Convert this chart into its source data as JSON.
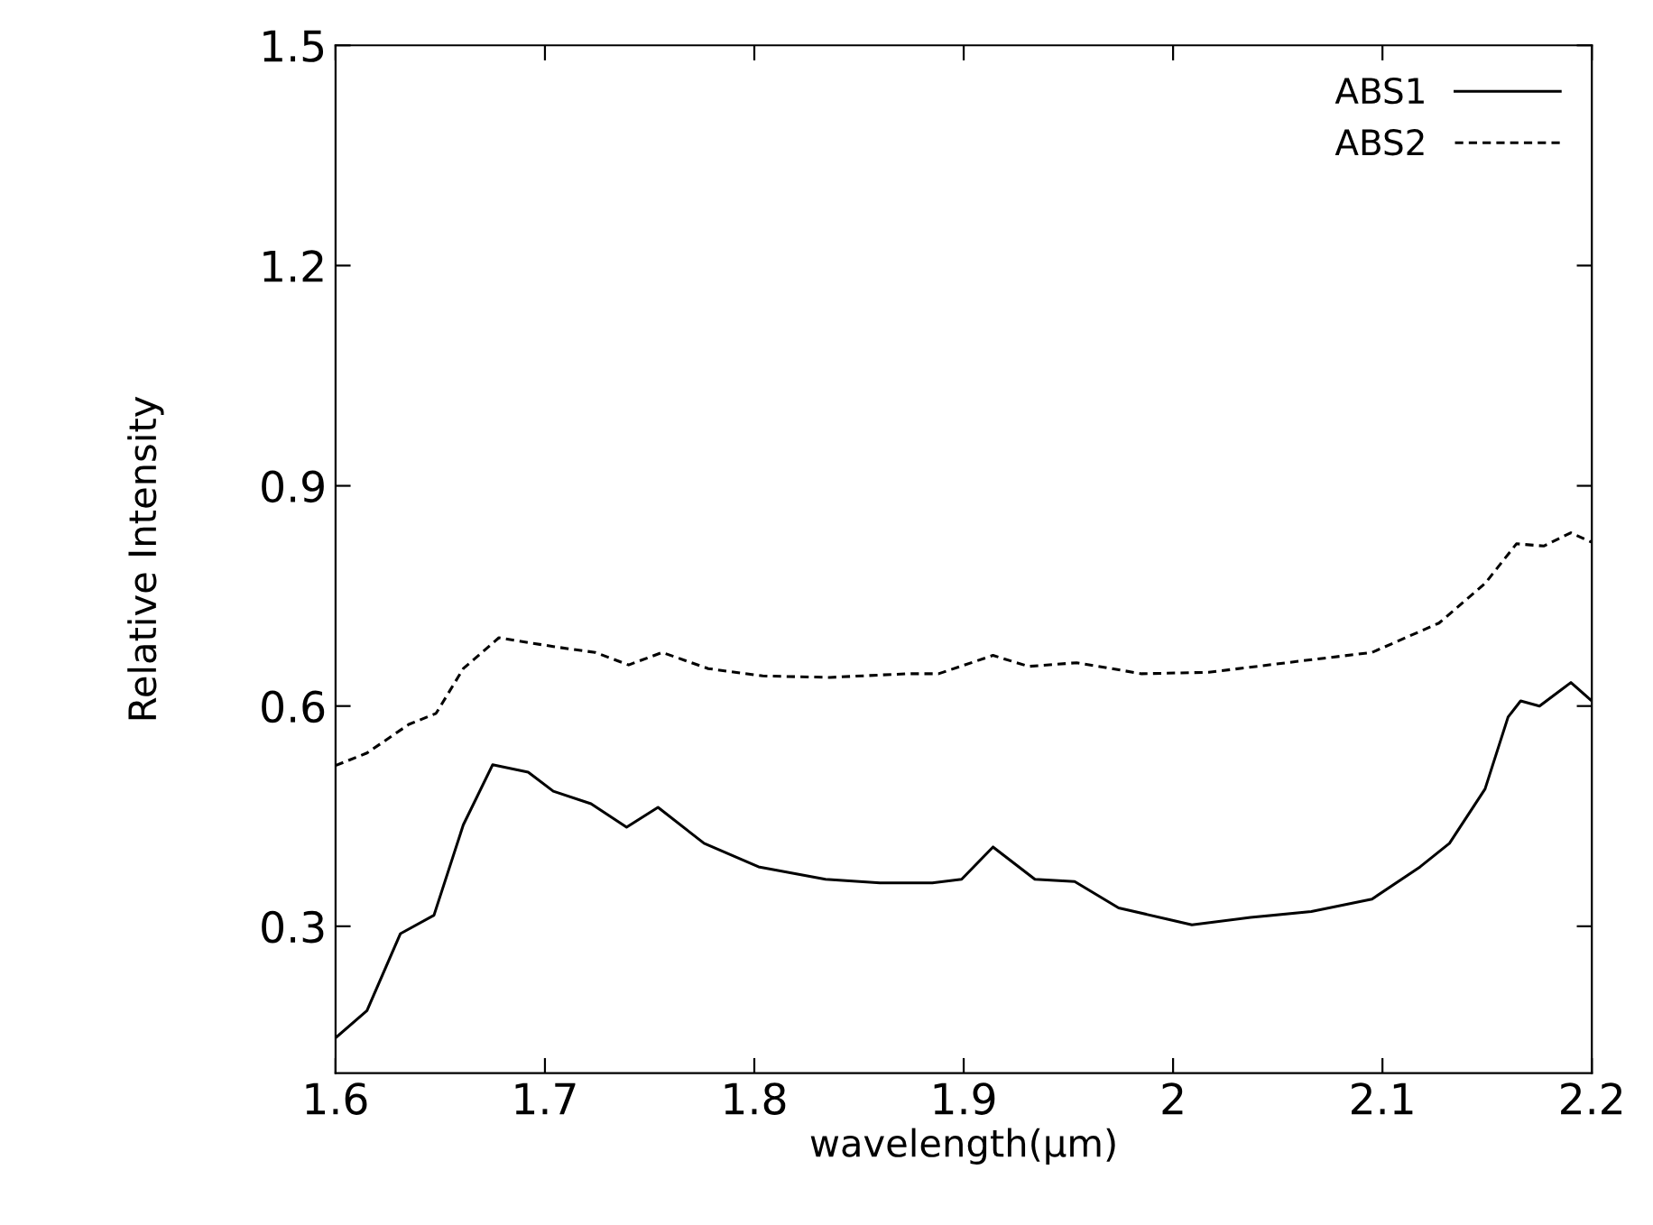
{
  "chart_data": {
    "type": "line",
    "xlabel": "wavelength(μm)",
    "ylabel": "Relative Intensity",
    "xlim": [
      1.6,
      2.2
    ],
    "xticks": [
      1.6,
      1.7,
      1.8,
      1.9,
      2,
      2.1,
      2.2
    ],
    "ylim": [
      0.1,
      1.5
    ],
    "yticks": [
      0.3,
      0.6,
      0.9,
      1.2,
      1.5
    ],
    "grid": false,
    "legend": "top right",
    "marker": "none",
    "series": [
      {
        "name": "ABS1",
        "color": "#000000",
        "line_style": "solid",
        "x": [
          1.6,
          1.615,
          1.631,
          1.647,
          1.661,
          1.675,
          1.692,
          1.704,
          1.722,
          1.739,
          1.754,
          1.776,
          1.802,
          1.834,
          1.86,
          1.885,
          1.899,
          1.914,
          1.934,
          1.953,
          1.974,
          2.009,
          2.037,
          2.066,
          2.095,
          2.118,
          2.132,
          2.149,
          2.16,
          2.166,
          2.175,
          2.19,
          2.2
        ],
        "values": [
          0.148,
          0.185,
          0.29,
          0.315,
          0.438,
          0.52,
          0.51,
          0.484,
          0.467,
          0.435,
          0.462,
          0.413,
          0.381,
          0.364,
          0.359,
          0.359,
          0.364,
          0.408,
          0.364,
          0.361,
          0.325,
          0.302,
          0.312,
          0.32,
          0.337,
          0.381,
          0.413,
          0.487,
          0.585,
          0.607,
          0.6,
          0.632,
          0.607
        ]
      },
      {
        "name": "ABS2",
        "color": "#000000",
        "line_style": "dashed",
        "x": [
          1.6,
          1.615,
          1.635,
          1.648,
          1.661,
          1.678,
          1.704,
          1.724,
          1.74,
          1.756,
          1.778,
          1.804,
          1.836,
          1.873,
          1.888,
          1.914,
          1.931,
          1.954,
          1.985,
          2.017,
          2.06,
          2.095,
          2.127,
          2.149,
          2.164,
          2.177,
          2.19,
          2.2
        ],
        "values": [
          0.519,
          0.536,
          0.575,
          0.59,
          0.651,
          0.693,
          0.681,
          0.673,
          0.656,
          0.673,
          0.651,
          0.641,
          0.639,
          0.644,
          0.644,
          0.669,
          0.654,
          0.659,
          0.644,
          0.646,
          0.661,
          0.673,
          0.713,
          0.767,
          0.821,
          0.818,
          0.836,
          0.823
        ]
      }
    ]
  }
}
